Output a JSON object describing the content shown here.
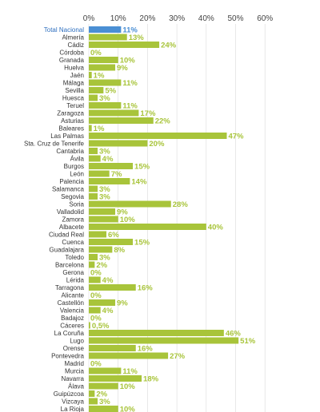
{
  "colors": {
    "bar": "#a8c43a",
    "highlight_bar": "#4a8fd4",
    "highlight_label": "#2e6fbf",
    "grid": "#d9d9d9"
  },
  "chart_data": {
    "type": "bar",
    "orientation": "horizontal",
    "title": "",
    "xlabel": "",
    "ylabel": "",
    "xlim": [
      0,
      60
    ],
    "ticks": [
      "0%",
      "10%",
      "20%",
      "30%",
      "40%",
      "50%",
      "60%"
    ],
    "tick_values": [
      0,
      10,
      20,
      30,
      40,
      50,
      60
    ],
    "highlight_index": 0,
    "grid": true,
    "categories": [
      "Total Nacional",
      "Almería",
      "Cádiz",
      "Córdoba",
      "Granada",
      "Huelva",
      "Jaén",
      "Málaga",
      "Sevilla",
      "Huesca",
      "Teruel",
      "Zaragoza",
      "Asturias",
      "Baleares",
      "Las Palmas",
      "Sta. Cruz de Tenerife",
      "Cantabria",
      "Ávila",
      "Burgos",
      "León",
      "Palencia",
      "Salamanca",
      "Segovia",
      "Soria",
      "Valladolid",
      "Zamora",
      "Albacete",
      "Ciudad Real",
      "Cuenca",
      "Guadalajara",
      "Toledo",
      "Barcelona",
      "Gerona",
      "Lérida",
      "Tarragona",
      "Alicante",
      "Castellón",
      "Valencia",
      "Badajoz",
      "Cáceres",
      "La Coruña",
      "Lugo",
      "Orense",
      "Pontevedra",
      "Madrid",
      "Murcia",
      "Navarra",
      "Álava",
      "Guipúzcoa",
      "Vizcaya",
      "La Rioja"
    ],
    "values": [
      11,
      13,
      24,
      0,
      10,
      9,
      1,
      11,
      5,
      3,
      11,
      17,
      22,
      1,
      47,
      20,
      3,
      4,
      15,
      7,
      14,
      3,
      3,
      28,
      9,
      10,
      40,
      6,
      15,
      8,
      3,
      2,
      0,
      4,
      16,
      0,
      9,
      4,
      0,
      0.5,
      46,
      51,
      16,
      27,
      0,
      11,
      18,
      10,
      2,
      3,
      10
    ],
    "value_labels": [
      "11%",
      "13%",
      "24%",
      "0%",
      "10%",
      "9%",
      "1%",
      "11%",
      "5%",
      "3%",
      "11%",
      "17%",
      "22%",
      "1%",
      "47%",
      "20%",
      "3%",
      "4%",
      "15%",
      "7%",
      "14%",
      "3%",
      "3%",
      "28%",
      "9%",
      "10%",
      "40%",
      "6%",
      "15%",
      "8%",
      "3%",
      "2%",
      "0%",
      "4%",
      "16%",
      "0%",
      "9%",
      "4%",
      "0%",
      "0,5%",
      "46%",
      "51%",
      "16%",
      "27%",
      "0%",
      "11%",
      "18%",
      "10%",
      "2%",
      "3%",
      "10%"
    ]
  }
}
